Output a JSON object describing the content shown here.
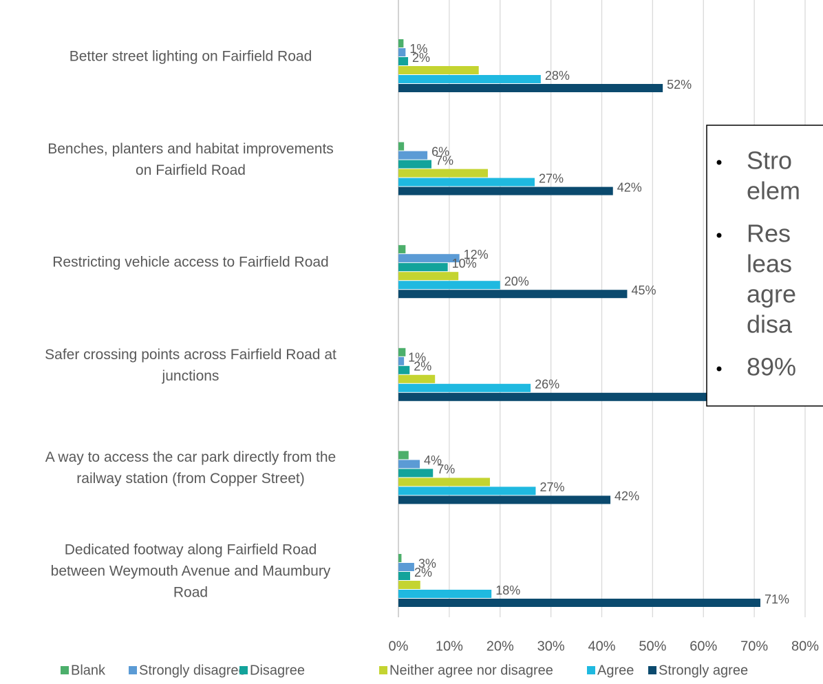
{
  "chart_data": {
    "type": "bar",
    "orientation": "horizontal",
    "categories": [
      "Better street lighting on Fairfield Road",
      "Benches, planters and habitat improvements\non Fairfield Road",
      "Restricting vehicle access to Fairfield Road",
      "Safer crossing points across Fairfield Road at\njunctions",
      "A way to access the car park directly from the\nrailway station (from Copper Street)",
      "Dedicated footway along Fairfield Road\nbetween Weymouth Avenue and Maumbury\nRoad"
    ],
    "series": [
      {
        "name": "Blank",
        "color": "#4caf6b",
        "values": [
          1.0,
          1.1,
          1.4,
          1.4,
          2.0,
          0.6
        ],
        "value_labels": [
          null,
          null,
          null,
          null,
          null,
          null
        ]
      },
      {
        "name": "Strongly disagree",
        "color": "#5b9bd5",
        "values": [
          1.4,
          5.7,
          12,
          1.1,
          4.2,
          3.1
        ],
        "value_labels": [
          "1%",
          "6%",
          "12%",
          "1%",
          "4%",
          "3%"
        ]
      },
      {
        "name": "Disagree",
        "color": "#13a39b",
        "values": [
          1.9,
          6.5,
          9.7,
          2.2,
          6.8,
          2.3
        ],
        "value_labels": [
          "2%",
          "7%",
          "10%",
          "2%",
          "7%",
          "2%"
        ]
      },
      {
        "name": "Neither agree nor disagree",
        "color": "#c4d431",
        "values": [
          15.8,
          17.6,
          11.8,
          7.2,
          18,
          4.3
        ],
        "value_labels": [
          null,
          null,
          null,
          null,
          null,
          null
        ]
      },
      {
        "name": "Agree",
        "color": "#1fb9e0",
        "values": [
          28,
          26.8,
          20,
          26,
          27,
          18.3
        ],
        "value_labels": [
          "28%",
          "27%",
          "20%",
          "26%",
          "27%",
          "18%"
        ]
      },
      {
        "name": "Strongly agree",
        "color": "#0b4a6e",
        "values": [
          52,
          42.2,
          45,
          63,
          41.7,
          71.2
        ],
        "value_labels": [
          "52%",
          "42%",
          "45%",
          null,
          "42%",
          "71%"
        ]
      }
    ],
    "xlim": [
      0,
      80
    ],
    "xticks": [
      {
        "value": 0,
        "label": "0%"
      },
      {
        "value": 10,
        "label": "10%"
      },
      {
        "value": 20,
        "label": "20%"
      },
      {
        "value": 30,
        "label": "30%"
      },
      {
        "value": 40,
        "label": "40%"
      },
      {
        "value": 50,
        "label": "50%"
      },
      {
        "value": 60,
        "label": "60%"
      },
      {
        "value": 70,
        "label": "70%"
      },
      {
        "value": 80,
        "label": "80%"
      }
    ],
    "grid": true,
    "legend": "bottom",
    "annotation": [
      [
        "Stro",
        "elem"
      ],
      [
        "Res",
        "leas",
        "agre",
        "disa"
      ],
      [
        "89%"
      ]
    ]
  }
}
